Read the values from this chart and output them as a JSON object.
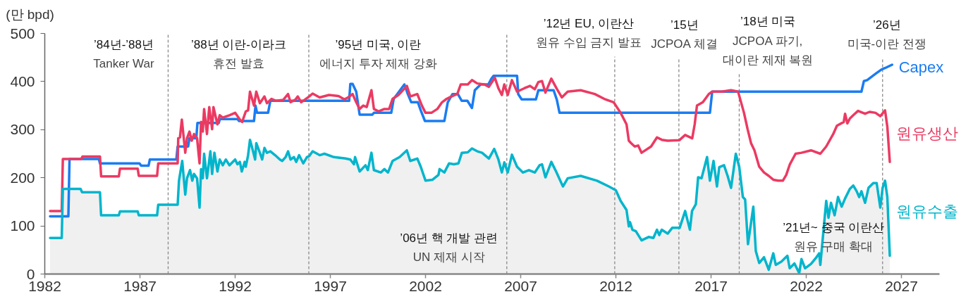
{
  "chart_data": {
    "type": "line",
    "ylabel": "(만 bpd)",
    "xlim": [
      1982,
      2029
    ],
    "xticks": [
      1982,
      1987,
      1992,
      1997,
      2002,
      2007,
      2012,
      2017,
      2022,
      2027
    ],
    "ylim": [
      0,
      500
    ],
    "yticks": [
      0,
      100,
      200,
      300,
      400,
      500
    ],
    "series": [
      {
        "name": "Capex",
        "color": "#1a7cf2",
        "x": [
          1982.28,
          1983.24,
          1983.3,
          1984.84,
          1984.9,
          1986.97,
          1987.07,
          1987.45,
          1987.52,
          1988.91,
          1988.98,
          1989.53,
          1989.6,
          1989.96,
          1990.02,
          1991.14,
          1991.2,
          1992.13,
          1992.2,
          1992.99,
          1993.07,
          1993.15,
          1993.73,
          1993.85,
          1997.99,
          1998.05,
          1998.17,
          1998.36,
          1998.54,
          1999.2,
          1999.29,
          2000.2,
          2000.33,
          2000.89,
          2001.07,
          2001.25,
          2001.6,
          2001.75,
          2001.97,
          2002.99,
          2003.17,
          2003.42,
          2003.7,
          2003.9,
          2004.2,
          2004.44,
          2004.59,
          2004.9,
          2005.3,
          2005.46,
          2005.58,
          2006.81,
          2006.87,
          2007.05,
          2007.8,
          2007.93,
          2008.73,
          2008.9,
          2009.04,
          2016.94,
          2017.06,
          2024.9,
          2025.03,
          2025.2,
          2025.64,
          2025.95,
          2026.14,
          2026.51
        ],
        "values": [
          120,
          120,
          239,
          239,
          230,
          230,
          225,
          225,
          238,
          238,
          265,
          265,
          282,
          282,
          314,
          314,
          322,
          322,
          318,
          318,
          350,
          335,
          335,
          360,
          360,
          395,
          395,
          379,
          331,
          331,
          335,
          335,
          364,
          394,
          374,
          357,
          357,
          340,
          318,
          318,
          357,
          374,
          374,
          360,
          360,
          345,
          382,
          394,
          394,
          406,
          412,
          412,
          374,
          363,
          363,
          382,
          382,
          362,
          335,
          335,
          379,
          379,
          401,
          403,
          416,
          425,
          428,
          435
        ]
      },
      {
        "name": "원유생산",
        "color": "#eb3a62",
        "x": [
          1982.28,
          1982.89,
          1982.95,
          1983.91,
          1983.98,
          1984.9,
          1984.96,
          1985.89,
          1985.95,
          1986.88,
          1986.94,
          1987.9,
          1987.96,
          1988.98,
          1989.01,
          1989.1,
          1989.2,
          1989.38,
          1989.47,
          1989.6,
          1989.72,
          1989.84,
          1990.0,
          1990.13,
          1990.21,
          1990.3,
          1990.37,
          1990.52,
          1990.64,
          1990.79,
          1990.86,
          1991.07,
          1991.19,
          1991.35,
          1991.7,
          1992.0,
          1992.25,
          1992.37,
          1992.56,
          1992.68,
          1992.78,
          1992.99,
          1993.11,
          1993.3,
          1993.54,
          1993.67,
          1993.91,
          1994.15,
          1994.53,
          1994.78,
          1994.91,
          1995.16,
          1995.29,
          1995.47,
          1995.65,
          1995.89,
          1996.07,
          1996.44,
          1996.93,
          1997.43,
          1997.74,
          1997.93,
          1998.17,
          1998.36,
          1998.54,
          1998.73,
          1998.91,
          1999.16,
          1999.29,
          1999.53,
          1999.84,
          2000.09,
          2000.27,
          2000.58,
          2001.02,
          2001.2,
          2001.57,
          2001.81,
          2002.0,
          2002.31,
          2002.62,
          2002.87,
          2003.11,
          2003.36,
          2003.67,
          2003.85,
          2004.22,
          2004.44,
          2004.72,
          2005.09,
          2005.33,
          2005.64,
          2005.83,
          2006.01,
          2006.14,
          2006.32,
          2006.54,
          2006.81,
          2007.19,
          2007.49,
          2007.74,
          2007.93,
          2008.12,
          2008.3,
          2008.61,
          2008.91,
          2009.16,
          2009.47,
          2010.15,
          2010.89,
          2011.39,
          2011.88,
          2012.25,
          2012.56,
          2012.68,
          2012.8,
          2012.99,
          2013.17,
          2013.35,
          2013.85,
          2014.16,
          2014.41,
          2014.72,
          2015.33,
          2015.64,
          2016.01,
          2016.14,
          2016.26,
          2016.57,
          2016.88,
          2017.06,
          2017.56,
          2018.05,
          2018.42,
          2018.54,
          2018.73,
          2018.92,
          2019.1,
          2019.28,
          2019.53,
          2019.78,
          2020.03,
          2020.27,
          2020.52,
          2020.77,
          2020.95,
          2021.14,
          2021.44,
          2021.75,
          2022.25,
          2022.74,
          2023.05,
          2023.42,
          2023.61,
          2023.97,
          2024.04,
          2024.16,
          2024.29,
          2024.47,
          2024.72,
          2025.09,
          2025.33,
          2025.64,
          2025.89,
          2026.14,
          2026.26,
          2026.39
        ],
        "values": [
          131,
          131,
          239,
          239,
          244,
          244,
          203,
          203,
          219,
          219,
          204,
          204,
          230,
          230,
          282,
          284,
          321,
          252,
          282,
          296,
          277,
          291,
          282,
          230,
          316,
          296,
          343,
          291,
          347,
          301,
          347,
          311,
          330,
          325,
          330,
          335,
          321,
          316,
          338,
          340,
          379,
          350,
          379,
          355,
          369,
          355,
          364,
          360,
          362,
          374,
          357,
          362,
          369,
          357,
          362,
          369,
          375,
          367,
          372,
          370,
          363,
          367,
          374,
          357,
          343,
          350,
          347,
          382,
          343,
          338,
          343,
          343,
          364,
          372,
          391,
          369,
          374,
          350,
          335,
          335,
          343,
          357,
          364,
          369,
          374,
          394,
          394,
          403,
          396,
          394,
          389,
          408,
          386,
          372,
          394,
          372,
          403,
          379,
          386,
          391,
          384,
          399,
          401,
          377,
          406,
          384,
          367,
          379,
          382,
          374,
          364,
          357,
          335,
          311,
          277,
          272,
          265,
          267,
          252,
          265,
          284,
          279,
          277,
          278,
          289,
          282,
          311,
          350,
          357,
          374,
          379,
          379,
          382,
          379,
          362,
          335,
          301,
          272,
          257,
          223,
          211,
          204,
          196,
          194,
          194,
          206,
          228,
          250,
          252,
          257,
          250,
          265,
          291,
          308,
          316,
          333,
          313,
          323,
          330,
          339,
          333,
          337,
          335,
          328,
          340,
          306,
          233
        ]
      },
      {
        "name": "원유수출",
        "color": "#00b5cc",
        "type": "area",
        "x": [
          1982.28,
          1982.89,
          1982.95,
          1983.88,
          1983.96,
          1984.9,
          1984.96,
          1985.89,
          1985.95,
          1986.88,
          1986.94,
          1987.9,
          1987.96,
          1988.98,
          1989.05,
          1989.22,
          1989.38,
          1989.47,
          1989.63,
          1989.75,
          1989.84,
          1990.0,
          1990.13,
          1990.21,
          1990.3,
          1990.37,
          1990.52,
          1990.7,
          1990.79,
          1990.91,
          1991.07,
          1991.19,
          1991.35,
          1991.51,
          1991.7,
          1992.0,
          1992.12,
          1992.25,
          1992.35,
          1992.5,
          1992.56,
          1992.68,
          1992.78,
          1992.93,
          1993.05,
          1993.11,
          1993.3,
          1993.42,
          1993.54,
          1993.67,
          1993.85,
          1994.1,
          1994.35,
          1994.47,
          1994.65,
          1994.78,
          1994.91,
          1995.09,
          1995.21,
          1995.36,
          1995.58,
          1995.77,
          1995.89,
          1996.07,
          1996.44,
          1996.69,
          1997.19,
          1997.8,
          1998.05,
          1998.24,
          1998.3,
          1998.54,
          1998.85,
          1998.97,
          1999.16,
          1999.29,
          1999.65,
          1999.84,
          2000.03,
          2000.27,
          2000.64,
          2001.02,
          2001.2,
          2001.57,
          2001.75,
          2002.0,
          2002.37,
          2002.68,
          2002.74,
          2002.99,
          2003.24,
          2003.49,
          2003.73,
          2003.91,
          2004.22,
          2004.44,
          2004.72,
          2004.97,
          2005.33,
          2005.61,
          2005.83,
          2006.01,
          2006.14,
          2006.32,
          2006.54,
          2006.81,
          2007.12,
          2007.43,
          2007.74,
          2007.99,
          2008.12,
          2008.3,
          2008.61,
          2008.86,
          2009.22,
          2009.47,
          2010.15,
          2011.01,
          2011.63,
          2012.0,
          2012.25,
          2012.56,
          2012.68,
          2012.74,
          2012.87,
          2013.05,
          2013.35,
          2013.72,
          2013.97,
          2014.16,
          2014.28,
          2014.41,
          2014.72,
          2014.96,
          2015.35,
          2015.64,
          2015.89,
          2016.0,
          2016.2,
          2016.32,
          2016.5,
          2016.79,
          2016.94,
          2017.13,
          2017.31,
          2017.43,
          2017.68,
          2017.87,
          2018.05,
          2018.3,
          2018.48,
          2018.67,
          2018.79,
          2018.94,
          2019.22,
          2019.35,
          2019.53,
          2019.78,
          2020.03,
          2020.27,
          2020.4,
          2020.7,
          2021.01,
          2021.13,
          2021.38,
          2021.63,
          2021.75,
          2021.94,
          2022.25,
          2022.5,
          2022.68,
          2022.74,
          2023.05,
          2023.17,
          2023.3,
          2023.49,
          2023.67,
          2023.86,
          2024.04,
          2024.29,
          2024.47,
          2024.65,
          2024.78,
          2024.9,
          2025.09,
          2025.27,
          2025.52,
          2025.7,
          2025.89,
          2026.01,
          2026.14,
          2026.26,
          2026.39
        ],
        "values": [
          75,
          75,
          177,
          177,
          170,
          170,
          122,
          122,
          130,
          130,
          122,
          122,
          144,
          144,
          194,
          235,
          165,
          199,
          216,
          194,
          208,
          199,
          138,
          218,
          199,
          250,
          199,
          255,
          208,
          252,
          213,
          238,
          226,
          238,
          226,
          238,
          228,
          233,
          213,
          233,
          223,
          247,
          279,
          257,
          238,
          272,
          252,
          238,
          262,
          252,
          255,
          247,
          238,
          235,
          243,
          255,
          238,
          243,
          233,
          247,
          230,
          243,
          245,
          255,
          247,
          250,
          243,
          240,
          238,
          228,
          243,
          213,
          226,
          216,
          252,
          216,
          211,
          218,
          211,
          235,
          243,
          257,
          235,
          240,
          223,
          194,
          196,
          206,
          218,
          211,
          230,
          228,
          230,
          252,
          253,
          261,
          255,
          252,
          240,
          260,
          238,
          211,
          232,
          211,
          248,
          223,
          211,
          216,
          211,
          226,
          228,
          201,
          233,
          213,
          182,
          199,
          204,
          194,
          182,
          174,
          152,
          133,
          99,
          108,
          92,
          89,
          70,
          77,
          75,
          92,
          81,
          92,
          84,
          96,
          96,
          131,
          92,
          131,
          145,
          201,
          199,
          243,
          194,
          235,
          182,
          222,
          226,
          204,
          179,
          250,
          223,
          160,
          155,
          62,
          140,
          48,
          23,
          35,
          9,
          43,
          19,
          26,
          38,
          12,
          22,
          2,
          31,
          12,
          21,
          33,
          43,
          19,
          152,
          117,
          148,
          122,
          160,
          140,
          157,
          177,
          184,
          172,
          160,
          172,
          148,
          179,
          189,
          189,
          138,
          179,
          194,
          160,
          38
        ]
      }
    ],
    "ref_lines": [
      {
        "axis": "x",
        "value": 1988.48,
        "color": "#888888",
        "line_style": "dashed",
        "label": "’88년 이란-이라크\n휴전 발효"
      },
      {
        "axis": "x",
        "value": 1995.87,
        "color": "#888888",
        "line_style": "dashed",
        "label": "’95년 미국, 이란\n에너지 투자 제재 강화"
      },
      {
        "axis": "x",
        "value": 2006.27,
        "color": "#888888",
        "line_style": "dashed",
        "label": "’06년 핵 개발 관련\nUN 제재 시작"
      },
      {
        "axis": "x",
        "value": 2011.94,
        "color": "#888888",
        "line_style": "dashed",
        "label": "’12년 EU, 이란산\n원유 수입 금지 발표"
      },
      {
        "axis": "x",
        "value": 2015.31,
        "color": "#888888",
        "line_style": "dashed",
        "label": "’15년\nJCPOA 체결"
      },
      {
        "axis": "x",
        "value": 2018.48,
        "color": "#888888",
        "line_style": "dashed",
        "label": "’18년 미국\nJCPOA 파기,\n대이란 제재 복원"
      },
      {
        "axis": "x",
        "value": 2026.01,
        "color": "#888888",
        "line_style": "dashed",
        "label": "’26년\n미국-이란 전쟁"
      }
    ],
    "annotations": [
      "’84년-’88년\nTanker War",
      "’21년~ 중국 이란산\n원유 구매 확대"
    ]
  }
}
